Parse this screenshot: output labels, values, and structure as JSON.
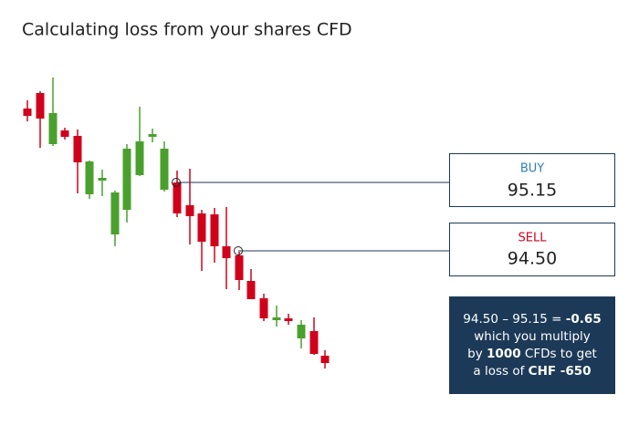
{
  "header": {
    "title": "Calculating loss from your shares CFD"
  },
  "buy": {
    "label": "BUY",
    "price": "95.15"
  },
  "sell": {
    "label": "SELL",
    "price": "94.50"
  },
  "note": {
    "lines": [
      [
        {
          "text": "94.50 – 95.15 = ",
          "bold": false
        },
        {
          "text": "-0.65",
          "bold": true
        }
      ],
      [
        {
          "text": "which you multiply",
          "bold": false
        }
      ],
      [
        {
          "text": "by ",
          "bold": false
        },
        {
          "text": "1000",
          "bold": true
        },
        {
          "text": " CFDs to get",
          "bold": false
        }
      ],
      [
        {
          "text": "a loss of ",
          "bold": false
        },
        {
          "text": "CHF -650",
          "bold": true
        }
      ]
    ]
  }
}
